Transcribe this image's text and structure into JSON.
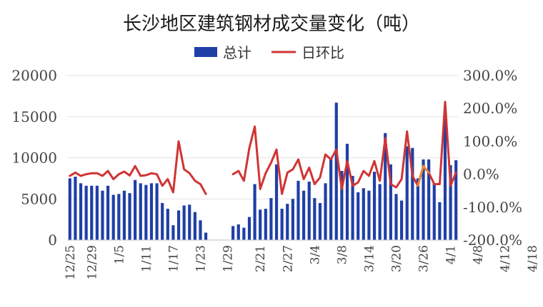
{
  "chart_data": {
    "type": "bar+line",
    "title": "长沙地区建筑钢材成交量变化（吨）",
    "legend": {
      "placement": "top-center",
      "bar_label": "总计",
      "line_label": "日环比"
    },
    "colors": {
      "bar": "#1f3fa6",
      "line": "#d03434",
      "line_highlight": "#e58a3a"
    },
    "left_axis": {
      "ylim": [
        0,
        20000
      ],
      "ticks": [
        "0",
        "5000",
        "10000",
        "15000",
        "20000"
      ]
    },
    "right_axis": {
      "ylim": [
        -200,
        300
      ],
      "ticks": [
        "-200.0%",
        "-100.0%",
        "0.0%",
        "100.0%",
        "200.0%",
        "300.0%"
      ]
    },
    "grid": true,
    "xtick_labels": [
      "12/25",
      "12/29",
      "1/5",
      "1/11",
      "1/17",
      "1/23",
      "1/29",
      "2/21",
      "2/27",
      "3/4",
      "3/8",
      "3/14",
      "3/20",
      "3/26",
      "4/1",
      "4/8",
      "4/12",
      "4/18"
    ],
    "xtick_index": [
      0,
      4,
      9,
      14,
      19,
      24,
      29,
      35,
      40,
      45,
      50,
      55,
      60,
      65,
      70,
      75,
      80,
      85
    ],
    "series": [
      {
        "name": "总计",
        "kind": "bar",
        "axis": "left",
        "values": [
          7500,
          7700,
          6900,
          6600,
          6600,
          6600,
          6000,
          6600,
          5500,
          5600,
          6000,
          5700,
          7300,
          6900,
          6700,
          6900,
          6900,
          4500,
          3800,
          1800,
          3600,
          4200,
          4300,
          3400,
          2400,
          900,
          0,
          0,
          0,
          0,
          1700,
          1900,
          1500,
          2800,
          6800,
          3700,
          3800,
          5100,
          9200,
          3800,
          4400,
          5000,
          7200,
          6000,
          7100,
          5100,
          4500,
          6900,
          9900,
          16700,
          8400,
          11700,
          7800,
          5800,
          6300,
          6000,
          8300,
          6800,
          13000,
          9200,
          5600,
          4800,
          11400,
          11200,
          7500,
          9800,
          9800,
          6900,
          4600,
          15000,
          9100,
          9700
        ]
      },
      {
        "name": "日环比",
        "kind": "line",
        "axis": "right",
        "values": [
          -5,
          5,
          -5,
          0,
          3,
          3,
          -5,
          10,
          -15,
          0,
          8,
          -4,
          25,
          -5,
          -3,
          3,
          0,
          -35,
          -15,
          -55,
          100,
          15,
          3,
          -20,
          -30,
          -60,
          null,
          null,
          null,
          null,
          0,
          10,
          -20,
          80,
          145,
          -45,
          3,
          35,
          75,
          -60,
          5,
          15,
          45,
          -15,
          20,
          -30,
          -10,
          60,
          45,
          75,
          -45,
          40,
          -35,
          -25,
          10,
          -5,
          40,
          -20,
          110,
          -30,
          -40,
          -15,
          130,
          -5,
          -35,
          25,
          5,
          -30,
          -30,
          220,
          -35,
          5
        ]
      }
    ],
    "highlight_segment": [
      64,
      66
    ]
  }
}
